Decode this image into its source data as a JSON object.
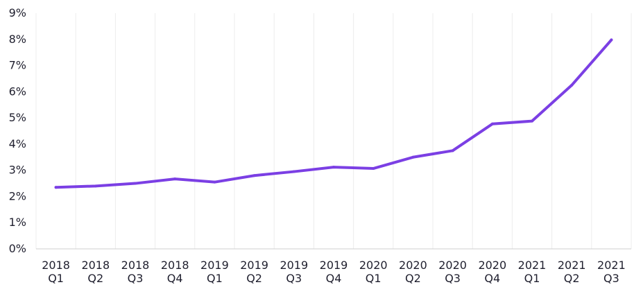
{
  "chart_data": {
    "type": "line",
    "title": "",
    "xlabel": "",
    "ylabel": "",
    "categories": [
      [
        "2018",
        "Q1"
      ],
      [
        "2018",
        "Q2"
      ],
      [
        "2018",
        "Q3"
      ],
      [
        "2018",
        "Q4"
      ],
      [
        "2019",
        "Q1"
      ],
      [
        "2019",
        "Q2"
      ],
      [
        "2019",
        "Q3"
      ],
      [
        "2019",
        "Q4"
      ],
      [
        "2020",
        "Q1"
      ],
      [
        "2020",
        "Q2"
      ],
      [
        "2020",
        "Q3"
      ],
      [
        "2020",
        "Q4"
      ],
      [
        "2021",
        "Q1"
      ],
      [
        "2021",
        "Q2"
      ],
      [
        "2021",
        "Q3"
      ]
    ],
    "series": [
      {
        "values": [
          2.35,
          2.4,
          2.5,
          2.67,
          2.55,
          2.8,
          2.95,
          3.12,
          3.07,
          3.5,
          3.75,
          4.77,
          4.88,
          6.25,
          7.98
        ],
        "color": "#7b3fe4"
      }
    ],
    "ylim": [
      0,
      9
    ],
    "yticks": [
      "0%",
      "1%",
      "2%",
      "3%",
      "4%",
      "5%",
      "6%",
      "7%",
      "8%",
      "9%"
    ],
    "grid": "vertical",
    "legend": "none"
  }
}
